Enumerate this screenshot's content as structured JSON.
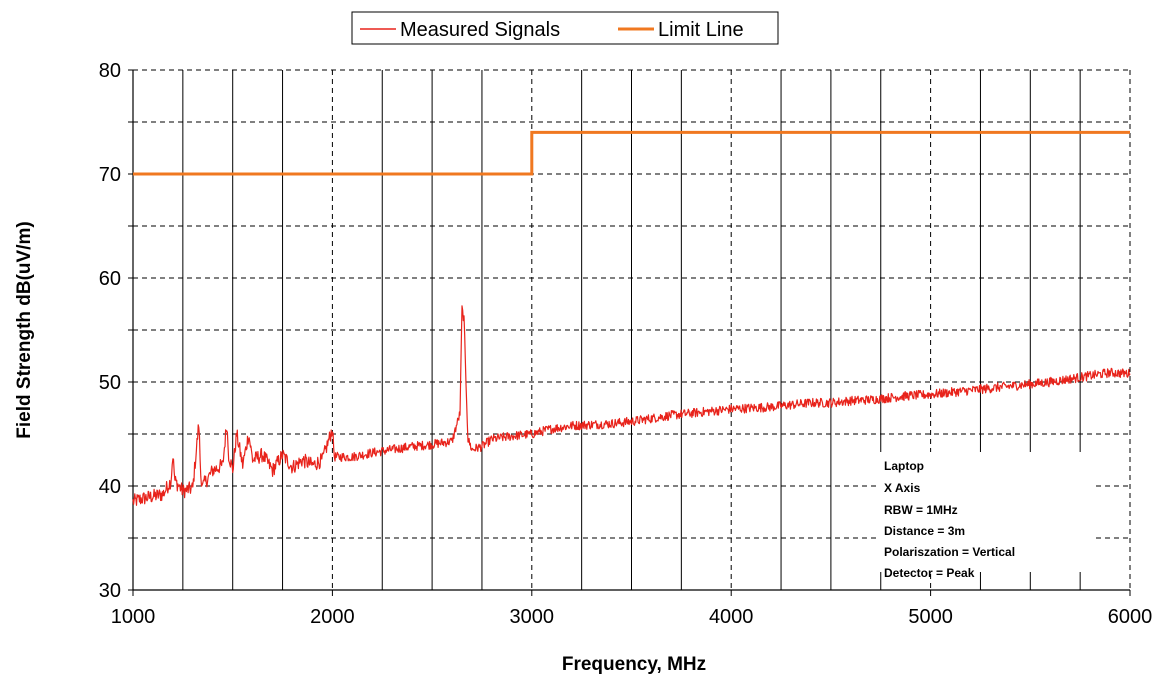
{
  "chart_data": {
    "type": "line",
    "xlabel": "Frequency,  MHz",
    "ylabel": "Field Strength dB(uV/m)",
    "xlim": [
      1000,
      6000
    ],
    "ylim": [
      30,
      80
    ],
    "x_ticks": [
      1000,
      2000,
      3000,
      4000,
      5000,
      6000
    ],
    "x_minor_step": 250,
    "y_ticks": [
      30,
      40,
      50,
      60,
      70,
      80
    ],
    "y_minor_step": 5,
    "grid": true,
    "legend_position": "top-center",
    "annotation_lines": [
      "Laptop",
      "X Axis",
      "RBW = 1MHz",
      "Distance = 3m",
      "Polariszation = Vertical",
      "Detector = Peak"
    ],
    "series": [
      {
        "name": "Measured Signals",
        "color": "#e8231b",
        "x": [
          1000,
          1050,
          1100,
          1150,
          1190,
          1200,
          1210,
          1250,
          1300,
          1330,
          1340,
          1350,
          1400,
          1450,
          1470,
          1480,
          1500,
          1520,
          1550,
          1580,
          1600,
          1650,
          1700,
          1750,
          1800,
          1850,
          1900,
          1950,
          2000,
          2010,
          2100,
          2200,
          2300,
          2400,
          2500,
          2600,
          2640,
          2650,
          2660,
          2670,
          2680,
          2700,
          2750,
          2800,
          2900,
          3000,
          3100,
          3200,
          3300,
          3400,
          3500,
          3600,
          3700,
          3800,
          3900,
          4000,
          4100,
          4200,
          4300,
          4400,
          4500,
          4600,
          4700,
          4800,
          4900,
          5000,
          5100,
          5200,
          5300,
          5400,
          5500,
          5600,
          5700,
          5800,
          5900,
          6000
        ],
        "y": [
          38.5,
          38.8,
          39.0,
          39.2,
          40.5,
          43.0,
          40.5,
          39.5,
          39.8,
          46.0,
          41.0,
          40.0,
          41.5,
          42.0,
          46.0,
          43.0,
          41.5,
          45.0,
          42.0,
          45.0,
          42.5,
          43.0,
          41.5,
          43.0,
          41.8,
          42.5,
          42.0,
          42.5,
          45.5,
          42.8,
          42.8,
          43.2,
          43.5,
          43.8,
          44.0,
          44.3,
          47.0,
          57.0,
          56.0,
          50.0,
          44.5,
          43.5,
          43.8,
          44.5,
          44.8,
          45.0,
          45.5,
          45.8,
          45.9,
          46.0,
          46.2,
          46.5,
          46.8,
          47.0,
          47.2,
          47.4,
          47.5,
          47.6,
          47.8,
          48.0,
          48.0,
          48.2,
          48.3,
          48.5,
          48.7,
          48.8,
          49.0,
          49.2,
          49.4,
          49.6,
          49.8,
          50.0,
          50.3,
          50.6,
          50.9,
          50.8
        ]
      },
      {
        "name": "Limit Line",
        "color": "#f07820",
        "x": [
          1000,
          3000,
          3000,
          6000
        ],
        "y": [
          70,
          70,
          74,
          74
        ]
      }
    ]
  }
}
